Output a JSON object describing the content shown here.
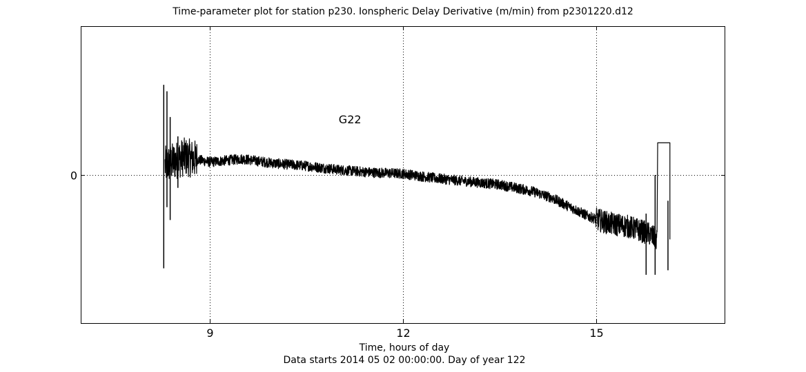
{
  "chart_data": {
    "type": "line",
    "title": "Time-parameter plot for station p230.   Ionspheric Delay Derivative (m/min) from p2301220.d12",
    "xlabel_line1": "Time, hours of day",
    "xlabel_line2": "Data starts 2014 05 02 00:00:00.  Day of year 122",
    "ylabel": "",
    "xlim": [
      7.0,
      17.0
    ],
    "ylim": [
      -0.23,
      0.23
    ],
    "xticks": [
      9,
      12,
      15
    ],
    "xtick_labels": [
      "9",
      "12",
      "15"
    ],
    "yticks": [
      0
    ],
    "ytick_labels": [
      "0"
    ],
    "grid": true,
    "grid_style": "dotted",
    "annotation": {
      "text": "G22",
      "x": 11.0,
      "y": 0.08
    },
    "series": [
      {
        "color": "#000000",
        "trend_x": [
          8.3,
          8.6,
          9.0,
          9.5,
          10.0,
          10.5,
          11.0,
          11.5,
          12.0,
          12.5,
          13.0,
          13.5,
          14.0,
          14.3,
          14.6,
          14.9,
          15.2,
          15.5,
          15.8,
          15.95
        ],
        "trend_y": [
          0.015,
          0.028,
          0.02,
          0.025,
          0.018,
          0.014,
          0.008,
          0.004,
          0.002,
          -0.005,
          -0.01,
          -0.015,
          -0.025,
          -0.035,
          -0.05,
          -0.065,
          -0.075,
          -0.08,
          -0.09,
          -0.1
        ],
        "spikes": [
          {
            "x": 8.28,
            "y_min": -0.145,
            "y_max": 0.14
          },
          {
            "x": 8.33,
            "y_min": -0.05,
            "y_max": 0.13
          },
          {
            "x": 8.38,
            "y_min": -0.07,
            "y_max": 0.09
          },
          {
            "x": 8.5,
            "y_min": -0.02,
            "y_max": 0.06
          },
          {
            "x": 15.78,
            "y_min": -0.155,
            "y_max": -0.06
          },
          {
            "x": 15.92,
            "y_min": -0.155,
            "y_max": 0.0
          },
          {
            "x": 16.12,
            "y_min": -0.148,
            "y_max": -0.04
          }
        ],
        "box": {
          "x0": 15.96,
          "x1": 16.15,
          "y_top": 0.05,
          "y_bottom": -0.1
        }
      }
    ]
  }
}
